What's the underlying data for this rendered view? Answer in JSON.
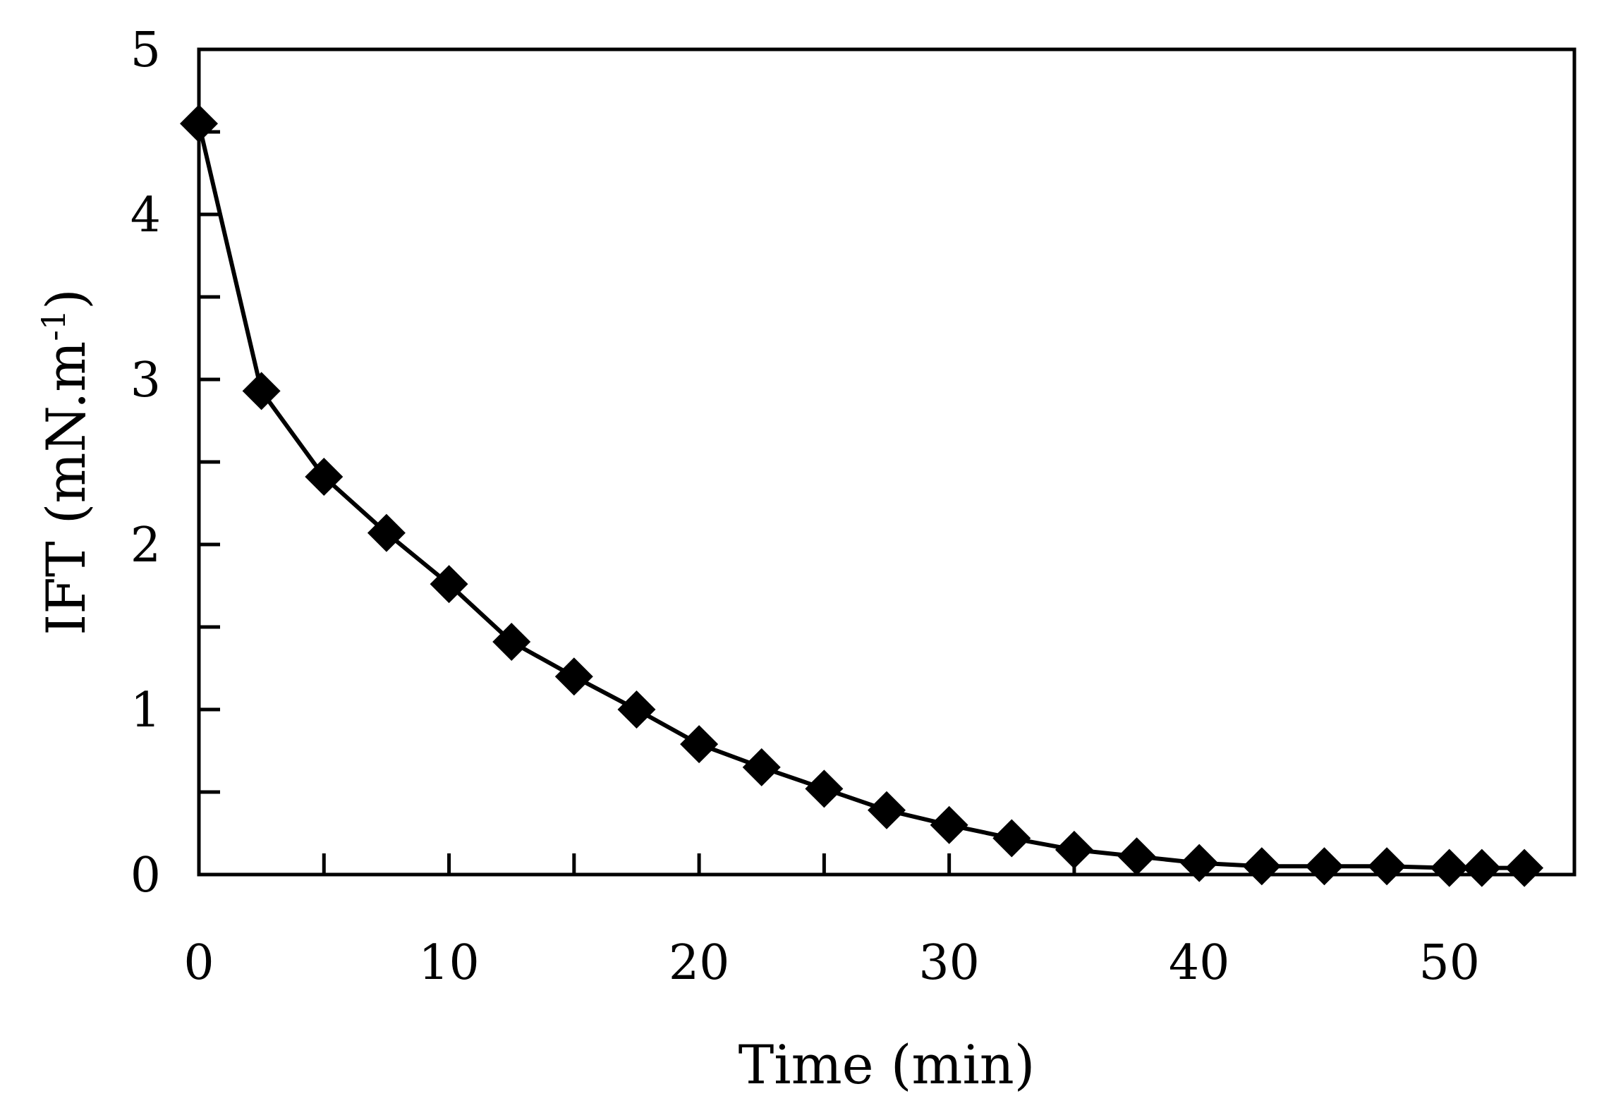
{
  "chart_data": {
    "type": "line",
    "title": "",
    "xlabel": "Time (min)",
    "ylabel": {
      "main": "IFT (mN.m",
      "sup": "-1",
      "close": ")"
    },
    "xlim": [
      0,
      55
    ],
    "ylim": [
      0,
      5
    ],
    "x_ticks": [
      0,
      10,
      20,
      30,
      40,
      50
    ],
    "x_minor_ticks": [
      5,
      15,
      25,
      35,
      45
    ],
    "y_ticks": [
      0,
      1,
      2,
      3,
      4,
      5
    ],
    "y_minor_ticks": [
      0.5,
      1.5,
      2.5,
      3.5,
      4.5
    ],
    "grid": false,
    "marker": "diamond",
    "line_color": "#000000",
    "series": [
      {
        "x": [
          0,
          2.5,
          5,
          7.5,
          10,
          12.5,
          15,
          17.5,
          20,
          22.5,
          25,
          27.5,
          30,
          32.5,
          35,
          37.5,
          40,
          42.5,
          45,
          47.5,
          50,
          51.3,
          53
        ],
        "y": [
          4.55,
          2.93,
          2.41,
          2.07,
          1.76,
          1.41,
          1.2,
          1.0,
          0.79,
          0.65,
          0.52,
          0.39,
          0.3,
          0.22,
          0.15,
          0.11,
          0.07,
          0.05,
          0.05,
          0.05,
          0.04,
          0.04,
          0.04
        ]
      }
    ]
  }
}
